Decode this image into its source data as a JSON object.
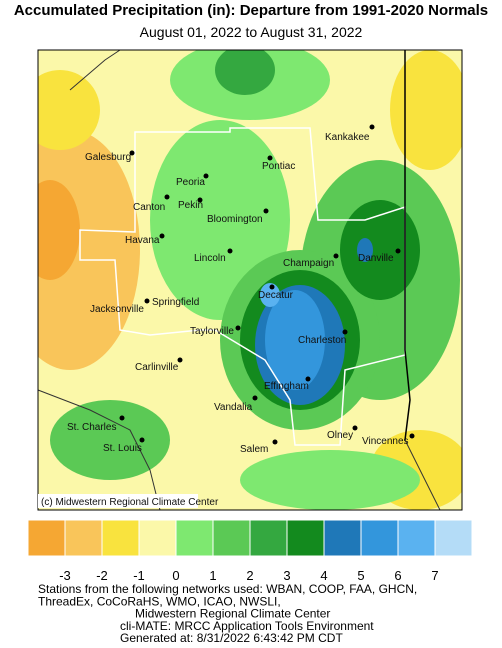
{
  "header": {
    "title": "Accumulated Precipitation (in): Departure from 1991-2020 Normals",
    "subtitle": "August 01, 2022 to August 31, 2022"
  },
  "map": {
    "cities": [
      "Kankakee",
      "Galesburg",
      "Peoria",
      "Pontiac",
      "Canton",
      "Pekin",
      "Bloomington",
      "Havana",
      "Lincoln",
      "Champaign",
      "Danville",
      "Decatur",
      "Jacksonville",
      "Springfield",
      "Taylorville",
      "Charleston",
      "Carlinville",
      "Effingham",
      "Vandalia",
      "St. Charles",
      "Olney",
      "Vincennes",
      "St. Louis",
      "Salem"
    ],
    "credit": "(c) Midwestern Regional Climate Center"
  },
  "legend": {
    "colors": [
      "#f5a733",
      "#f9c55a",
      "#f9e33e",
      "#fbf8a9",
      "#7ee870",
      "#5bc955",
      "#34a840",
      "#138a1e",
      "#1f78b8",
      "#3396dc",
      "#5ab2f0",
      "#b4dcf7"
    ],
    "ticks": [
      -3,
      -2,
      -1,
      0,
      1,
      2,
      3,
      4,
      5,
      6,
      7
    ]
  },
  "footer": {
    "lines": [
      "Stations from the following networks used: WBAN, COOP, FAA, GHCN,",
      "ThreadEx, CoCoRaHS, WMO, ICAO, NWSLI,",
      "Midwestern Regional Climate Center",
      "cli-MATE: MRCC Application Tools Environment",
      "Generated at: 8/31/2022 6:43:42 PM CDT"
    ]
  }
}
